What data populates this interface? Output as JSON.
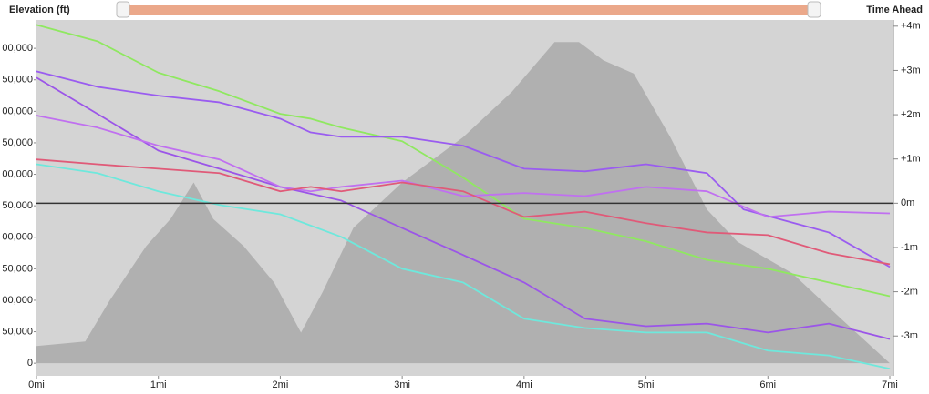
{
  "chart_data": {
    "type": "line",
    "ylabel": "Elevation (ft)",
    "y2label": "Time Ahead",
    "xlim": [
      0,
      7.03
    ],
    "xticks": [
      {
        "value": 0,
        "label": "0mi"
      },
      {
        "value": 1,
        "label": "1mi"
      },
      {
        "value": 2,
        "label": "2mi"
      },
      {
        "value": 3,
        "label": "3mi"
      },
      {
        "value": 4,
        "label": "4mi"
      },
      {
        "value": 5,
        "label": "5mi"
      },
      {
        "value": 6,
        "label": "6mi"
      },
      {
        "value": 7,
        "label": "7mi"
      }
    ],
    "ylim": [
      -20000,
      545000
    ],
    "yticks": [
      0,
      {
        "value": 50000,
        "label": "50,000"
      },
      {
        "value": 100000,
        "label": "00,000"
      },
      {
        "value": 150000,
        "label": "50,000"
      },
      {
        "value": 200000,
        "label": "00,000"
      },
      {
        "value": 250000,
        "label": "50,000"
      },
      {
        "value": 300000,
        "label": "00,000"
      },
      {
        "value": 350000,
        "label": "50,000"
      },
      {
        "value": 400000,
        "label": "00,000"
      },
      {
        "value": 450000,
        "label": "50,000"
      },
      {
        "value": 500000,
        "label": "00,000"
      }
    ],
    "y2lim": [
      -3.9,
      4.14
    ],
    "y2ticks": [
      {
        "value": 4,
        "label": "+4m"
      },
      {
        "value": 3,
        "label": "+3m"
      },
      {
        "value": 2,
        "label": "+2m"
      },
      {
        "value": 1,
        "label": "+1m"
      },
      {
        "value": 0,
        "label": "0m"
      },
      {
        "value": -1,
        "label": "-1m"
      },
      {
        "value": -2,
        "label": "-2m"
      },
      {
        "value": -3,
        "label": "-3m"
      }
    ],
    "reference_line": {
      "axis": "y2",
      "value": 0,
      "color": "#333333"
    },
    "series": [
      {
        "color": "#b0b0b0",
        "fill": true,
        "axis": "y",
        "x": [
          0,
          0.4,
          0.6,
          0.9,
          1.1,
          1.29,
          1.45,
          1.7,
          1.95,
          2.17,
          2.35,
          2.6,
          3.0,
          3.5,
          3.9,
          4.25,
          4.45,
          4.65,
          4.9,
          5.2,
          5.5,
          5.75,
          6.2,
          6.6,
          7.0
        ],
        "values": [
          27400,
          34600,
          99400,
          186000,
          229000,
          287000,
          229000,
          186000,
          128000,
          48700,
          114000,
          215000,
          287000,
          359000,
          431000,
          510000,
          510000,
          481000,
          460000,
          359000,
          244000,
          193000,
          143000,
          70600,
          0
        ]
      },
      {
        "color": "#8fe860",
        "axis": "y2",
        "x": [
          0,
          0.5,
          1,
          1.5,
          2,
          2.25,
          2.5,
          3,
          3.5,
          4,
          4.5,
          5,
          5.5,
          6,
          6.5,
          7
        ],
        "values": [
          4.03,
          3.66,
          2.95,
          2.53,
          2.02,
          1.91,
          1.71,
          1.4,
          0.58,
          -0.35,
          -0.56,
          -0.86,
          -1.28,
          -1.48,
          -1.79,
          -2.1
        ]
      },
      {
        "color": "#9a5cf0",
        "axis": "y2",
        "x": [
          0,
          0.5,
          1,
          1.5,
          2,
          2.25,
          2.5,
          3,
          3.5,
          4,
          4.5,
          5,
          5.5,
          5.8,
          6.5,
          7
        ],
        "values": [
          2.98,
          2.63,
          2.43,
          2.28,
          1.91,
          1.6,
          1.5,
          1.5,
          1.3,
          0.78,
          0.72,
          0.88,
          0.68,
          -0.14,
          -0.66,
          -1.44
        ]
      },
      {
        "color": "#9b55e8",
        "axis": "y2",
        "x": [
          0,
          0.5,
          1,
          1.5,
          2,
          2.5,
          3,
          3.5,
          4,
          4.5,
          5,
          5.5,
          6,
          6.5,
          7
        ],
        "values": [
          2.84,
          2.02,
          1.19,
          0.78,
          0.37,
          0.06,
          -0.56,
          -1.17,
          -1.79,
          -2.61,
          -2.78,
          -2.72,
          -2.92,
          -2.72,
          -3.07
        ]
      },
      {
        "color": "#c070f0",
        "axis": "y2",
        "x": [
          0,
          0.5,
          1,
          1.5,
          2,
          2.25,
          2.5,
          3,
          3.5,
          4,
          4.5,
          5,
          5.5,
          6,
          6.5,
          7
        ],
        "values": [
          1.98,
          1.71,
          1.3,
          0.99,
          0.37,
          0.27,
          0.37,
          0.51,
          0.16,
          0.23,
          0.16,
          0.37,
          0.27,
          -0.31,
          -0.19,
          -0.23
        ]
      },
      {
        "color": "#e05a78",
        "axis": "y2",
        "x": [
          0,
          0.5,
          1,
          1.5,
          2,
          2.25,
          2.5,
          3,
          3.5,
          4,
          4.5,
          5,
          5.5,
          6,
          6.5,
          7
        ],
        "values": [
          0.99,
          0.88,
          0.78,
          0.68,
          0.27,
          0.37,
          0.27,
          0.47,
          0.27,
          -0.31,
          -0.19,
          -0.45,
          -0.66,
          -0.72,
          -1.13,
          -1.38
        ]
      },
      {
        "color": "#6ee8dc",
        "axis": "y2",
        "x": [
          0,
          0.5,
          1,
          1.5,
          2,
          2.5,
          3,
          3.5,
          4,
          4.5,
          5,
          5.5,
          6,
          6.5,
          7
        ],
        "values": [
          0.88,
          0.68,
          0.27,
          -0.04,
          -0.25,
          -0.76,
          -1.48,
          -1.79,
          -2.61,
          -2.82,
          -2.92,
          -2.92,
          -3.33,
          -3.44,
          -3.74
        ]
      }
    ]
  }
}
